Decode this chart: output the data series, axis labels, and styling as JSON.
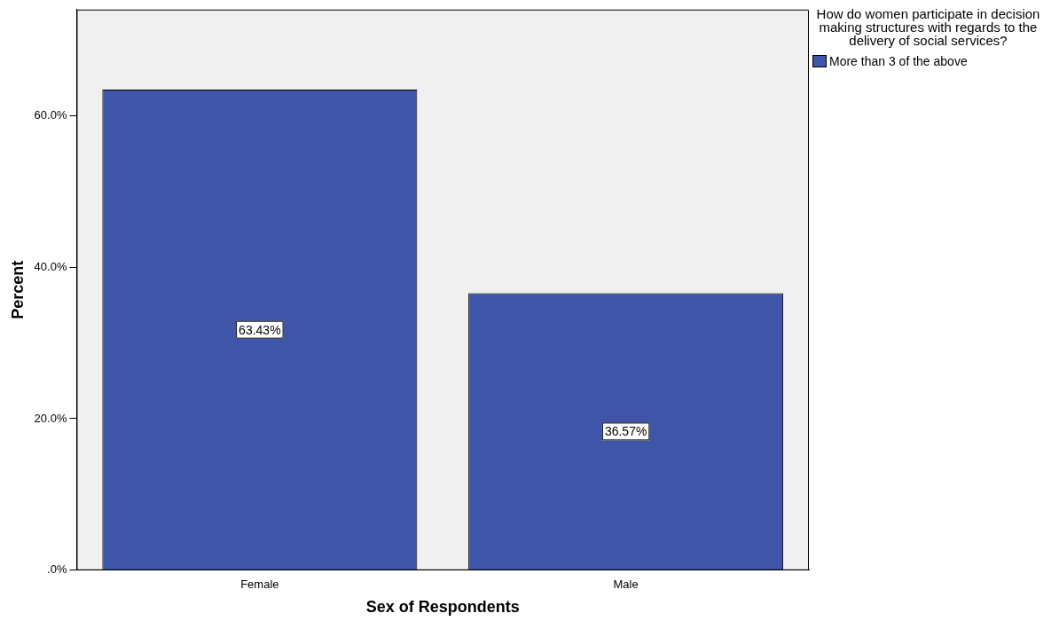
{
  "chart_data": {
    "type": "bar",
    "xlabel": "Sex of Respondents",
    "ylabel": "Percent",
    "legend_title": "How do women participate in decision making structures with regards to the delivery of social services?",
    "legend": "top right",
    "grid": false,
    "categories": [
      "Female",
      "Male"
    ],
    "series": [
      {
        "name": "More than 3 of the above",
        "color": "#3f56a8",
        "values": [
          63.43,
          36.57
        ],
        "value_labels": [
          "63.43%",
          "36.57%"
        ]
      }
    ],
    "ylim": [
      0,
      74
    ],
    "yticks": [
      {
        "value": 0,
        "label": ".0%"
      },
      {
        "value": 20,
        "label": "20.0%"
      },
      {
        "value": 40,
        "label": "40.0%"
      },
      {
        "value": 60,
        "label": "60.0%"
      }
    ]
  }
}
